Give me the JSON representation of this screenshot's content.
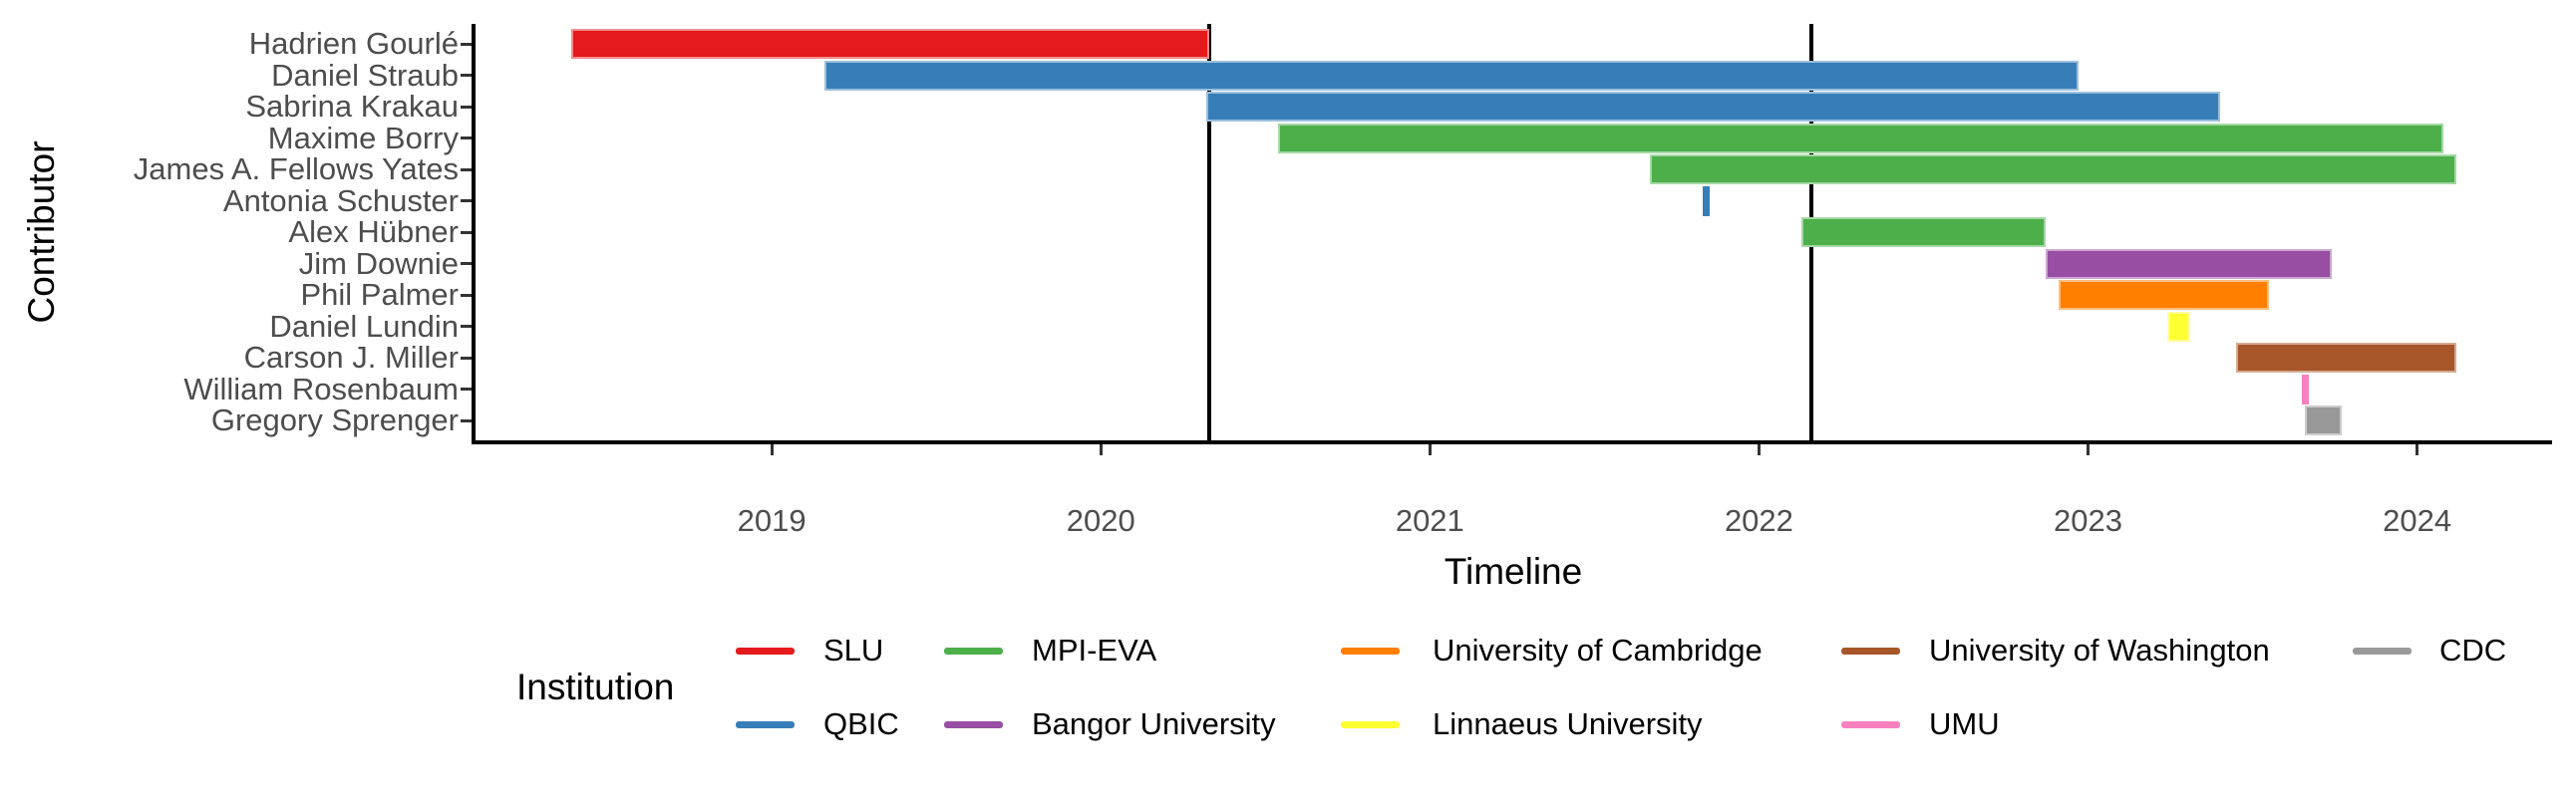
{
  "chart_data": {
    "type": "gantt",
    "xlabel": "Timeline",
    "ylabel": "Contributor",
    "legend_title": "Institution",
    "x_ticks": [
      2019,
      2020,
      2021,
      2022,
      2023,
      2024
    ],
    "x_range": [
      2018.1,
      2024.41
    ],
    "grid": "off",
    "legend_position": "bottom",
    "milestones": [
      2020.33,
      2022.16
    ],
    "institutions": [
      {
        "name": "SLU",
        "color": "#e41a1c"
      },
      {
        "name": "QBIC",
        "color": "#377eb8"
      },
      {
        "name": "MPI-EVA",
        "color": "#4daf4a"
      },
      {
        "name": "Bangor University",
        "color": "#984ea3"
      },
      {
        "name": "University of Cambridge",
        "color": "#ff7f00"
      },
      {
        "name": "Linnaeus University",
        "color": "#ffff33"
      },
      {
        "name": "University of Washington",
        "color": "#a65628"
      },
      {
        "name": "UMU",
        "color": "#f781bf"
      },
      {
        "name": "CDC",
        "color": "#999999"
      }
    ],
    "contributors": [
      {
        "name": "Hadrien Gourlé",
        "institution": "SLU",
        "start": 2018.39,
        "end": 2020.33
      },
      {
        "name": "Daniel Straub",
        "institution": "QBIC",
        "start": 2019.16,
        "end": 2022.97
      },
      {
        "name": "Sabrina Krakau",
        "institution": "QBIC",
        "start": 2020.32,
        "end": 2023.4
      },
      {
        "name": "Maxime Borry",
        "institution": "MPI-EVA",
        "start": 2020.54,
        "end": 2024.08
      },
      {
        "name": "James A. Fellows Yates",
        "institution": "MPI-EVA",
        "start": 2021.67,
        "end": 2024.12
      },
      {
        "name": "Antonia Schuster",
        "institution": "QBIC",
        "start": 2021.83,
        "end": 2021.85
      },
      {
        "name": "Alex Hübner",
        "institution": "MPI-EVA",
        "start": 2022.13,
        "end": 2022.87
      },
      {
        "name": "Jim Downie",
        "institution": "Bangor University",
        "start": 2022.87,
        "end": 2023.74
      },
      {
        "name": "Phil Palmer",
        "institution": "University of Cambridge",
        "start": 2022.91,
        "end": 2023.55
      },
      {
        "name": "Daniel Lundin",
        "institution": "Linnaeus University",
        "start": 2023.24,
        "end": 2023.31
      },
      {
        "name": "Carson J. Miller",
        "institution": "University of Washington",
        "start": 2023.45,
        "end": 2024.12
      },
      {
        "name": "William Rosenbaum",
        "institution": "UMU",
        "start": 2023.65,
        "end": 2023.67
      },
      {
        "name": "Gregory Sprenger",
        "institution": "CDC",
        "start": 2023.66,
        "end": 2023.77
      }
    ],
    "legend_columns": [
      [
        "SLU",
        "QBIC"
      ],
      [
        "MPI-EVA",
        "Bangor University"
      ],
      [
        "University of Cambridge",
        "Linnaeus University"
      ],
      [
        "University of Washington",
        "UMU"
      ],
      [
        "CDC"
      ]
    ]
  }
}
